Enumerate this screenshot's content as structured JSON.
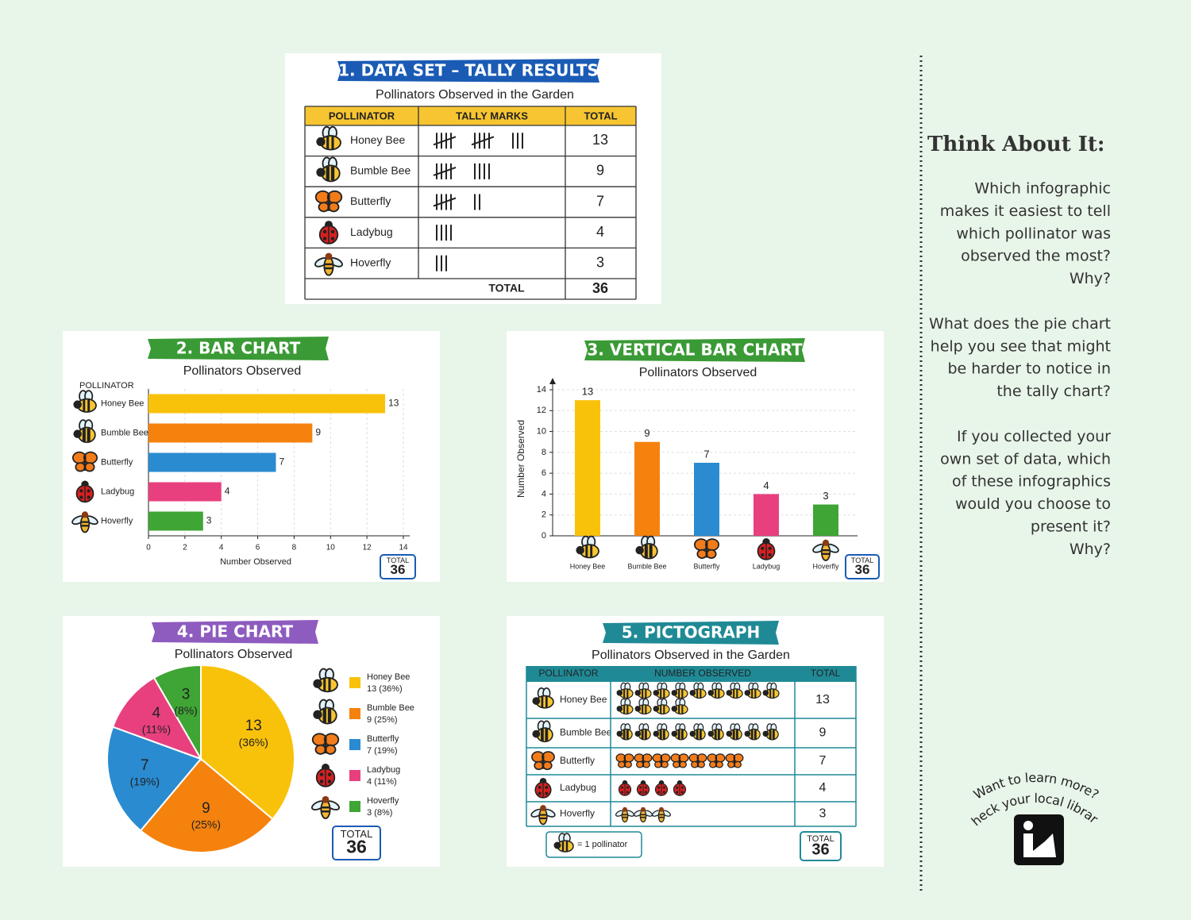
{
  "table": {
    "title": "1. DATA SET – TALLY RESULTS",
    "subtitle": "Pollinators Observed in the Garden",
    "header": [
      "POLLINATOR",
      "TALLY MARKS",
      "TOTAL"
    ],
    "rows": [
      [
        "Honey Bee",
        13
      ],
      [
        "Bumble Bee",
        9
      ],
      [
        "Butterfly",
        7
      ],
      [
        "Ladybug",
        4
      ],
      [
        "Hoverfly",
        3
      ]
    ],
    "footer": [
      "TOTAL",
      36
    ]
  },
  "chart_data": [
    {
      "type": "bar",
      "orientation": "horizontal",
      "title": "2. BAR CHART",
      "subtitle": "Pollinators Observed",
      "y_label": "POLLINATOR",
      "x_label": "Number Observed",
      "categories": [
        "Honey Bee",
        "Bumble Bee",
        "Butterfly",
        "Ladybug",
        "Hoverfly"
      ],
      "values": [
        13,
        9,
        7,
        4,
        3
      ],
      "colors": [
        "#f9c20a",
        "#f5820d",
        "#2a8bd0",
        "#e8407f",
        "#3fa535"
      ],
      "xlim": [
        0,
        14
      ],
      "xticks": [
        0,
        2,
        4,
        6,
        8,
        10,
        12,
        14
      ],
      "grid": true,
      "total_label": "TOTAL",
      "total": 36
    },
    {
      "type": "bar",
      "orientation": "vertical",
      "title": "3. VERTICAL BAR CHART",
      "subtitle": "Pollinators Observed",
      "y_label": "Number Observed",
      "categories": [
        "Honey Bee",
        "Bumble Bee",
        "Butterfly",
        "Ladybug",
        "Hoverfly"
      ],
      "values": [
        13,
        9,
        7,
        4,
        3
      ],
      "colors": [
        "#f9c20a",
        "#f5820d",
        "#2a8bd0",
        "#e8407f",
        "#3fa535"
      ],
      "ylim": [
        0,
        14
      ],
      "yticks": [
        0,
        2,
        4,
        6,
        8,
        10,
        12,
        14
      ],
      "grid": true,
      "total_label": "TOTAL",
      "total": 36
    },
    {
      "type": "pie",
      "title": "4. PIE CHART",
      "subtitle": "Pollinators Observed",
      "categories": [
        "Honey Bee",
        "Bumble Bee",
        "Butterfly",
        "Ladybug",
        "Hoverfly"
      ],
      "values": [
        13,
        9,
        7,
        4,
        3
      ],
      "percent_labels": [
        "(36%)",
        "(25%)",
        "(19%)",
        "(11%)",
        "(8%)"
      ],
      "legend_labels": [
        "13 (36%)",
        "9 (25%)",
        "7 (19%)",
        "4 (11%)",
        "3 (8%)"
      ],
      "colors": [
        "#f9c20a",
        "#f5820d",
        "#2a8bd0",
        "#e8407f",
        "#3fa535"
      ],
      "total_label": "TOTAL",
      "total": 36
    }
  ],
  "pictograph": {
    "title": "5. PICTOGRAPH",
    "subtitle": "Pollinators Observed in the Garden",
    "header": [
      "POLLINATOR",
      "NUMBER OBSERVED",
      "TOTAL"
    ],
    "rows": [
      [
        "Honey Bee",
        13
      ],
      [
        "Bumble Bee",
        9
      ],
      [
        "Butterfly",
        7
      ],
      [
        "Ladybug",
        4
      ],
      [
        "Hoverfly",
        3
      ]
    ],
    "key": "= 1 pollinator",
    "total_label": "TOTAL",
    "total": 36
  },
  "sidebar": {
    "title": "Think About It:",
    "questions": [
      [
        "Which infographic",
        "makes it easiest to tell",
        "which pollinator was",
        "observed the most?",
        "Why?"
      ],
      [
        "What does the pie chart",
        "help you see that might",
        "be harder to notice in",
        "the tally chart?"
      ],
      [
        "If you collected your",
        "own set of data, which",
        "of these infographics",
        "would you choose to",
        "present it?",
        "Why?"
      ]
    ]
  },
  "library": {
    "lines": [
      "Want to learn more?",
      "Check your local library!"
    ]
  }
}
